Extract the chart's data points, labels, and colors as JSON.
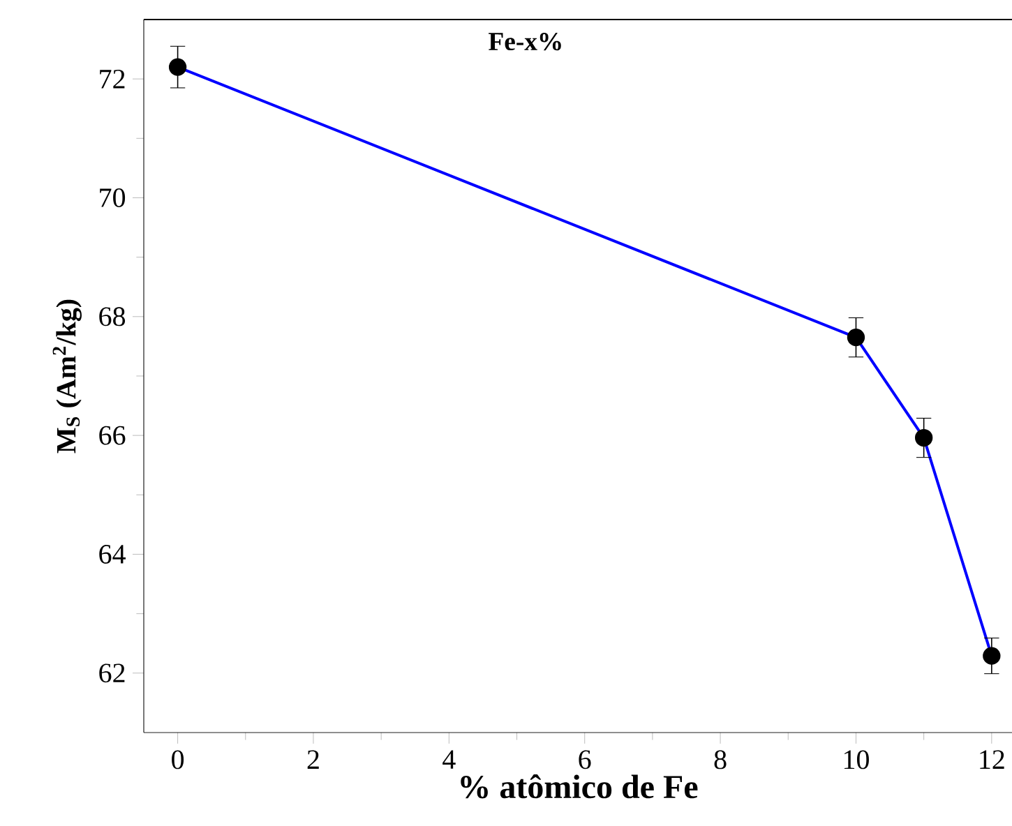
{
  "chart_data": {
    "type": "line",
    "title": "**Fe-x%**",
    "xlabel": "% atômico de Fe",
    "ylabel": "M$_{S}$ (Am$^{2}$/kg)",
    "x": [
      0,
      10,
      11,
      12
    ],
    "series": [
      {
        "color": "#0000ff",
        "values": [
          72.2,
          67.65,
          65.96,
          62.29
        ],
        "errors": [
          0.35,
          0.33,
          0.33,
          0.3
        ]
      }
    ],
    "xlim": [
      -0.5,
      12.3
    ],
    "ylim": [
      61.0,
      73.0
    ],
    "xticks": [
      0,
      2,
      4,
      6,
      8,
      10,
      12
    ],
    "yticks": [
      62,
      64,
      66,
      68,
      70,
      72
    ],
    "marker": "circle",
    "line_style": "solid"
  }
}
